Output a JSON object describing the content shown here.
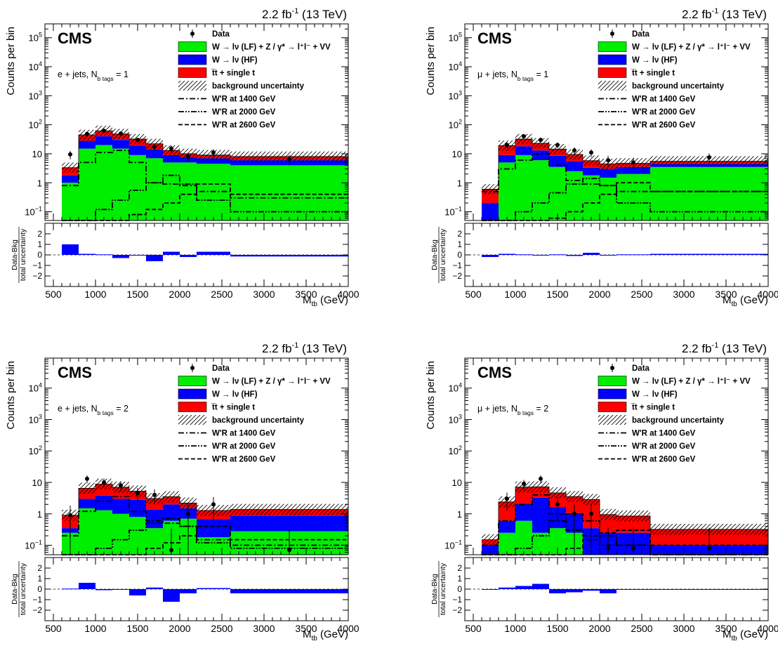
{
  "figure": {
    "lumi": "2.2 fb",
    "lumi_sup": "-1",
    "energy": " (13 TeV)",
    "cms": "CMS",
    "ylabel": "Counts per bin",
    "xlabel_main": "M",
    "xlabel_sub": "tb",
    "xlabel_unit": " (GeV)",
    "ratio_num": "Data-Bkg",
    "ratio_den": "total uncertainty"
  },
  "legend": {
    "data": "Data",
    "lf": "W → lν (LF) + Z / γ* → l⁺l⁻ + VV",
    "hf": "W → lν (HF)",
    "top": "t̅t + single t",
    "unc": "background uncertainty",
    "w1400": "W'R at 1400 GeV",
    "w2000": "W'R at 2000 GeV",
    "w2600": "W'R at 2600 GeV"
  },
  "colors": {
    "lf": "#00ee00",
    "hf": "#0000ff",
    "top": "#ff0000",
    "ratio": "#0000ff"
  },
  "chart_data": [
    {
      "type": "bar",
      "stacked": true,
      "yscale": "log",
      "category_label": "e + jets, N",
      "category_sub": "b tags",
      "category_val": " = 1",
      "xlabel": "M_tb (GeV)",
      "ylabel": "Counts per bin",
      "xlim": [
        400,
        4000
      ],
      "ylim": [
        0.05,
        300000
      ],
      "bins": [
        [
          600,
          800
        ],
        [
          800,
          1000
        ],
        [
          1000,
          1200
        ],
        [
          1200,
          1400
        ],
        [
          1400,
          1600
        ],
        [
          1600,
          1800
        ],
        [
          1800,
          2000
        ],
        [
          2000,
          2200
        ],
        [
          2200,
          2600
        ],
        [
          2600,
          4000
        ]
      ],
      "series": [
        {
          "name": "W → lν (LF) + Z / γ* → l⁺l⁻ + VV",
          "values": [
            1.0,
            15,
            20,
            15,
            9,
            7,
            5,
            5,
            4.5,
            4
          ]
        },
        {
          "name": "W → lν (HF)",
          "values": [
            0.8,
            13,
            20,
            15,
            10,
            7,
            4,
            2.5,
            2.5,
            2
          ]
        },
        {
          "name": "t̅t + single t",
          "values": [
            1.5,
            17,
            22,
            18,
            13,
            8,
            4,
            2.5,
            2.0,
            2
          ]
        }
      ],
      "data_points": [
        [
          700,
          9.5
        ],
        [
          900,
          48
        ],
        [
          1100,
          62
        ],
        [
          1300,
          50
        ],
        [
          1500,
          30
        ],
        [
          1700,
          17
        ],
        [
          1900,
          15
        ],
        [
          2100,
          8
        ],
        [
          2400,
          11
        ],
        [
          3300,
          6.5
        ]
      ],
      "signals": {
        "w1400": [
          0.8,
          5,
          11,
          13,
          5,
          1.0,
          0.9,
          0.8,
          0.5,
          0.3
        ],
        "w2000": [
          0.05,
          0.05,
          0.12,
          0.25,
          0.55,
          1.0,
          1.8,
          0.9,
          0.25,
          0.1
        ],
        "w2600": [
          0.05,
          0.05,
          0.05,
          0.05,
          0.08,
          0.12,
          0.2,
          0.4,
          0.9,
          0.4
        ]
      },
      "ratio": [
        1.0,
        0.1,
        0.05,
        -0.3,
        0,
        -0.6,
        0.3,
        -0.2,
        0.3,
        -0.15
      ],
      "ratio_ylim": [
        -3,
        3
      ]
    },
    {
      "type": "bar",
      "stacked": true,
      "yscale": "log",
      "category_label": "μ + jets, N",
      "category_sub": "b tags",
      "category_val": " = 1",
      "xlabel": "M_tb (GeV)",
      "ylabel": "Counts per bin",
      "xlim": [
        400,
        4000
      ],
      "ylim": [
        0.05,
        300000
      ],
      "bins": [
        [
          600,
          800
        ],
        [
          800,
          1000
        ],
        [
          1000,
          1200
        ],
        [
          1200,
          1400
        ],
        [
          1400,
          1600
        ],
        [
          1600,
          1800
        ],
        [
          1800,
          2000
        ],
        [
          2000,
          2200
        ],
        [
          2200,
          2600
        ],
        [
          2600,
          4000
        ]
      ],
      "series": [
        {
          "name": "W → lν (LF) + Z / γ* → l⁺l⁻ + VV",
          "values": [
            0.05,
            5,
            9,
            6,
            3.5,
            2.5,
            1.8,
            1.5,
            2,
            3.5
          ]
        },
        {
          "name": "W → lν (HF)",
          "values": [
            0.15,
            4,
            9,
            7,
            5,
            3,
            1.5,
            1.5,
            1.5,
            1
          ]
        },
        {
          "name": "t̅t + single t",
          "values": [
            0.4,
            10,
            14,
            10,
            6,
            4,
            2.5,
            1.5,
            1.2,
            1
          ]
        }
      ],
      "data_points": [
        [
          700,
          0.05
        ],
        [
          900,
          20
        ],
        [
          1100,
          40
        ],
        [
          1300,
          30
        ],
        [
          1500,
          20
        ],
        [
          1700,
          13
        ],
        [
          1900,
          11
        ],
        [
          2100,
          6
        ],
        [
          2400,
          5
        ],
        [
          3300,
          7.5
        ]
      ],
      "signals": {
        "w1400": [
          0.5,
          3,
          6,
          10,
          4,
          1.2,
          0.9,
          0.8,
          0.5,
          0.5
        ],
        "w2000": [
          0.05,
          0.05,
          0.1,
          0.2,
          0.45,
          0.9,
          1.4,
          0.8,
          0.2,
          0.1
        ],
        "w2600": [
          0.05,
          0.05,
          0.05,
          0.05,
          0.06,
          0.1,
          0.2,
          0.4,
          1.0,
          0.5
        ]
      },
      "ratio": [
        -0.2,
        0.1,
        0.05,
        0,
        0.05,
        -0.1,
        0.2,
        0,
        0.05,
        0.1
      ],
      "ratio_ylim": [
        -3,
        3
      ]
    },
    {
      "type": "bar",
      "stacked": true,
      "yscale": "log",
      "category_label": "e + jets, N",
      "category_sub": "b tags",
      "category_val": " = 2",
      "xlabel": "M_tb (GeV)",
      "ylabel": "Counts per bin",
      "xlim": [
        400,
        4000
      ],
      "ylim": [
        0.05,
        90000
      ],
      "bins": [
        [
          600,
          800
        ],
        [
          800,
          1000
        ],
        [
          1000,
          1200
        ],
        [
          1200,
          1400
        ],
        [
          1400,
          1600
        ],
        [
          1600,
          1800
        ],
        [
          1800,
          2000
        ],
        [
          2000,
          2200
        ],
        [
          2200,
          2600
        ],
        [
          2600,
          4000
        ]
      ],
      "series": [
        {
          "name": "W → lν (LF) + Z / γ* → l⁺l⁻ + VV",
          "values": [
            0.25,
            1.5,
            1.3,
            1.0,
            0.8,
            0.35,
            0.6,
            0.7,
            0.18,
            0.28
          ]
        },
        {
          "name": "W → lν (HF)",
          "values": [
            0.1,
            1.5,
            2.5,
            2.0,
            2.0,
            1.0,
            1.4,
            0.8,
            0.5,
            0.6
          ]
        },
        {
          "name": "t̅t + single t",
          "values": [
            0.55,
            3.5,
            5,
            4,
            2.5,
            1.7,
            1.5,
            0.7,
            0.6,
            0.5
          ]
        }
      ],
      "data_points": [
        [
          700,
          0.9
        ],
        [
          900,
          13
        ],
        [
          1100,
          10
        ],
        [
          1300,
          8
        ],
        [
          1500,
          4.5
        ],
        [
          1700,
          4
        ],
        [
          1900,
          0.07
        ],
        [
          2100,
          1.0
        ],
        [
          2400,
          2.0
        ],
        [
          3300,
          0.07
        ]
      ],
      "signals": {
        "w1400": [
          0.2,
          1.2,
          2.5,
          3.5,
          1.2,
          0.6,
          0.5,
          0.4,
          0.15,
          0.1
        ],
        "w2000": [
          0.05,
          0.05,
          0.08,
          0.15,
          0.3,
          0.5,
          0.7,
          0.4,
          0.12,
          0.08
        ],
        "w2600": [
          0.05,
          0.05,
          0.05,
          0.05,
          0.05,
          0.08,
          0.12,
          0.2,
          0.4,
          0.15
        ]
      },
      "ratio": [
        0.05,
        0.6,
        -0.1,
        0,
        -0.6,
        0.15,
        -1.2,
        -0.4,
        0.1,
        -0.4
      ],
      "ratio_ylim": [
        -3,
        3
      ]
    },
    {
      "type": "bar",
      "stacked": true,
      "yscale": "log",
      "category_label": "μ + jets, N",
      "category_sub": "b tags",
      "category_val": " = 2",
      "xlabel": "M_tb (GeV)",
      "ylabel": "Counts per bin",
      "xlim": [
        400,
        4000
      ],
      "ylim": [
        0.05,
        90000
      ],
      "bins": [
        [
          600,
          800
        ],
        [
          800,
          1000
        ],
        [
          1000,
          1200
        ],
        [
          1200,
          1400
        ],
        [
          1400,
          1600
        ],
        [
          1600,
          1800
        ],
        [
          1800,
          2000
        ],
        [
          2000,
          2200
        ],
        [
          2200,
          2600
        ],
        [
          2600,
          4000
        ]
      ],
      "series": [
        {
          "name": "W → lν (LF) + Z / γ* → l⁺l⁻ + VV",
          "values": [
            0.05,
            0.25,
            0.6,
            0.25,
            0.35,
            0.25,
            0.05,
            0.05,
            0.05,
            0.05
          ]
        },
        {
          "name": "W → lν (HF)",
          "values": [
            0.05,
            0.35,
            1.5,
            3.0,
            1.3,
            0.8,
            0.3,
            0.2,
            0.2,
            0.05
          ]
        },
        {
          "name": "t̅t + single t",
          "values": [
            0.05,
            1.8,
            5,
            4,
            3,
            2.5,
            2.5,
            0.7,
            0.6,
            0.22
          ]
        }
      ],
      "data_points": [
        [
          700,
          0.05
        ],
        [
          900,
          3
        ],
        [
          1100,
          9
        ],
        [
          1300,
          13
        ],
        [
          1500,
          2
        ],
        [
          1700,
          1
        ],
        [
          1900,
          1
        ],
        [
          2100,
          0.08
        ],
        [
          2400,
          0.08
        ],
        [
          3300,
          0.08
        ]
      ],
      "signals": {
        "w1400": [
          0.1,
          0.6,
          2.0,
          4.0,
          1.0,
          0.3,
          0.2,
          0.1,
          0.1,
          0.05
        ],
        "w2000": [
          0.05,
          0.05,
          0.08,
          0.2,
          0.6,
          1.0,
          0.6,
          0.2,
          0.1,
          0.05
        ],
        "w2600": [
          0.05,
          0.05,
          0.05,
          0.05,
          0.05,
          0.08,
          0.15,
          0.25,
          0.3,
          0.1
        ]
      },
      "ratio": [
        0,
        0.15,
        0.3,
        0.5,
        -0.4,
        -0.3,
        -0.15,
        -0.4,
        0,
        0
      ],
      "ratio_ylim": [
        -3,
        3
      ]
    }
  ]
}
